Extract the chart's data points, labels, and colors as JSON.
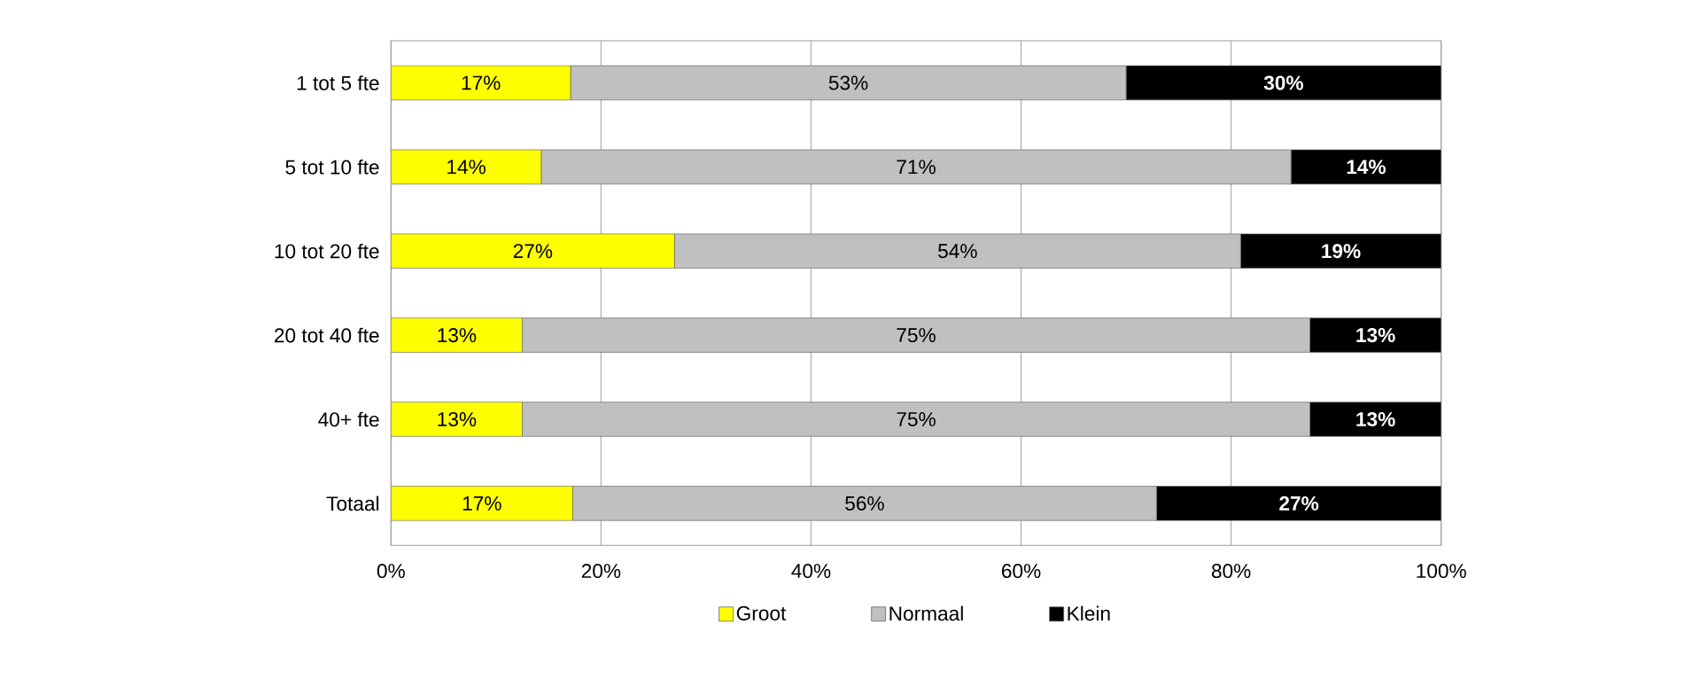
{
  "chart_data": {
    "type": "bar",
    "orientation": "horizontal",
    "stacked": true,
    "categories": [
      "1 tot 5 fte",
      "5 tot 10 fte",
      "10 tot 20 fte",
      "20 tot 40 fte",
      "40+ fte",
      "Totaal"
    ],
    "series": [
      {
        "name": "Groot",
        "color": "#ffff00",
        "values": [
          17.1,
          14.3,
          27.0,
          12.5,
          12.5,
          17.3
        ],
        "value_labels": [
          "17%",
          "14%",
          "27%",
          "13%",
          "13%",
          "17%"
        ]
      },
      {
        "name": "Normaal",
        "color": "#c0c0c0",
        "values": [
          52.9,
          71.4,
          53.9,
          75.0,
          75.0,
          55.6
        ],
        "value_labels": [
          "53%",
          "71%",
          "54%",
          "75%",
          "75%",
          "56%"
        ]
      },
      {
        "name": "Klein",
        "color": "#000000",
        "values": [
          30.0,
          14.3,
          19.1,
          12.5,
          12.5,
          27.1
        ],
        "value_labels": [
          "30%",
          "14%",
          "19%",
          "13%",
          "13%",
          "27%"
        ]
      }
    ],
    "xlim": [
      0,
      100
    ],
    "xticks": [
      {
        "value": 0,
        "label": "0%"
      },
      {
        "value": 20,
        "label": "20%"
      },
      {
        "value": 40,
        "label": "40%"
      },
      {
        "value": 60,
        "label": "60%"
      },
      {
        "value": 80,
        "label": "80%"
      },
      {
        "value": 100,
        "label": "100%"
      }
    ],
    "grid": "x",
    "legend": "bottom"
  }
}
